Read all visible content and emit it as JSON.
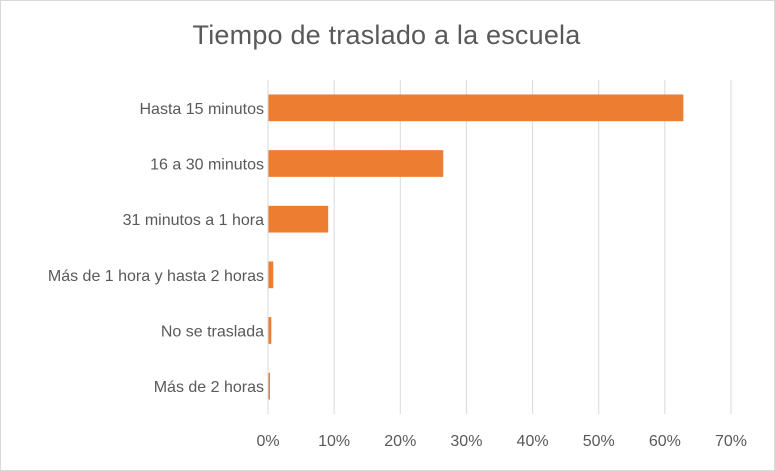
{
  "chart_data": {
    "type": "bar",
    "orientation": "horizontal",
    "title": "Tiempo de traslado a la escuela",
    "categories": [
      "Hasta 15 minutos",
      "16 a 30 minutos",
      "31 minutos a 1 hora",
      "Más de 1 hora y hasta 2 horas",
      "No se traslada",
      "Más de 2 horas"
    ],
    "values": [
      62.8,
      26.5,
      9.1,
      0.8,
      0.5,
      0.3
    ],
    "value_unit": "%",
    "xlim": [
      0,
      70
    ],
    "x_ticks": [
      0,
      10,
      20,
      30,
      40,
      50,
      60,
      70
    ],
    "x_tick_labels": [
      "0%",
      "10%",
      "20%",
      "30%",
      "40%",
      "50%",
      "60%",
      "70%"
    ],
    "xlabel": "",
    "ylabel": "",
    "grid": true,
    "legend": "none",
    "bar_color": "#ED7D31",
    "grid_color": "#D9D9D9",
    "text_color": "#595959"
  }
}
